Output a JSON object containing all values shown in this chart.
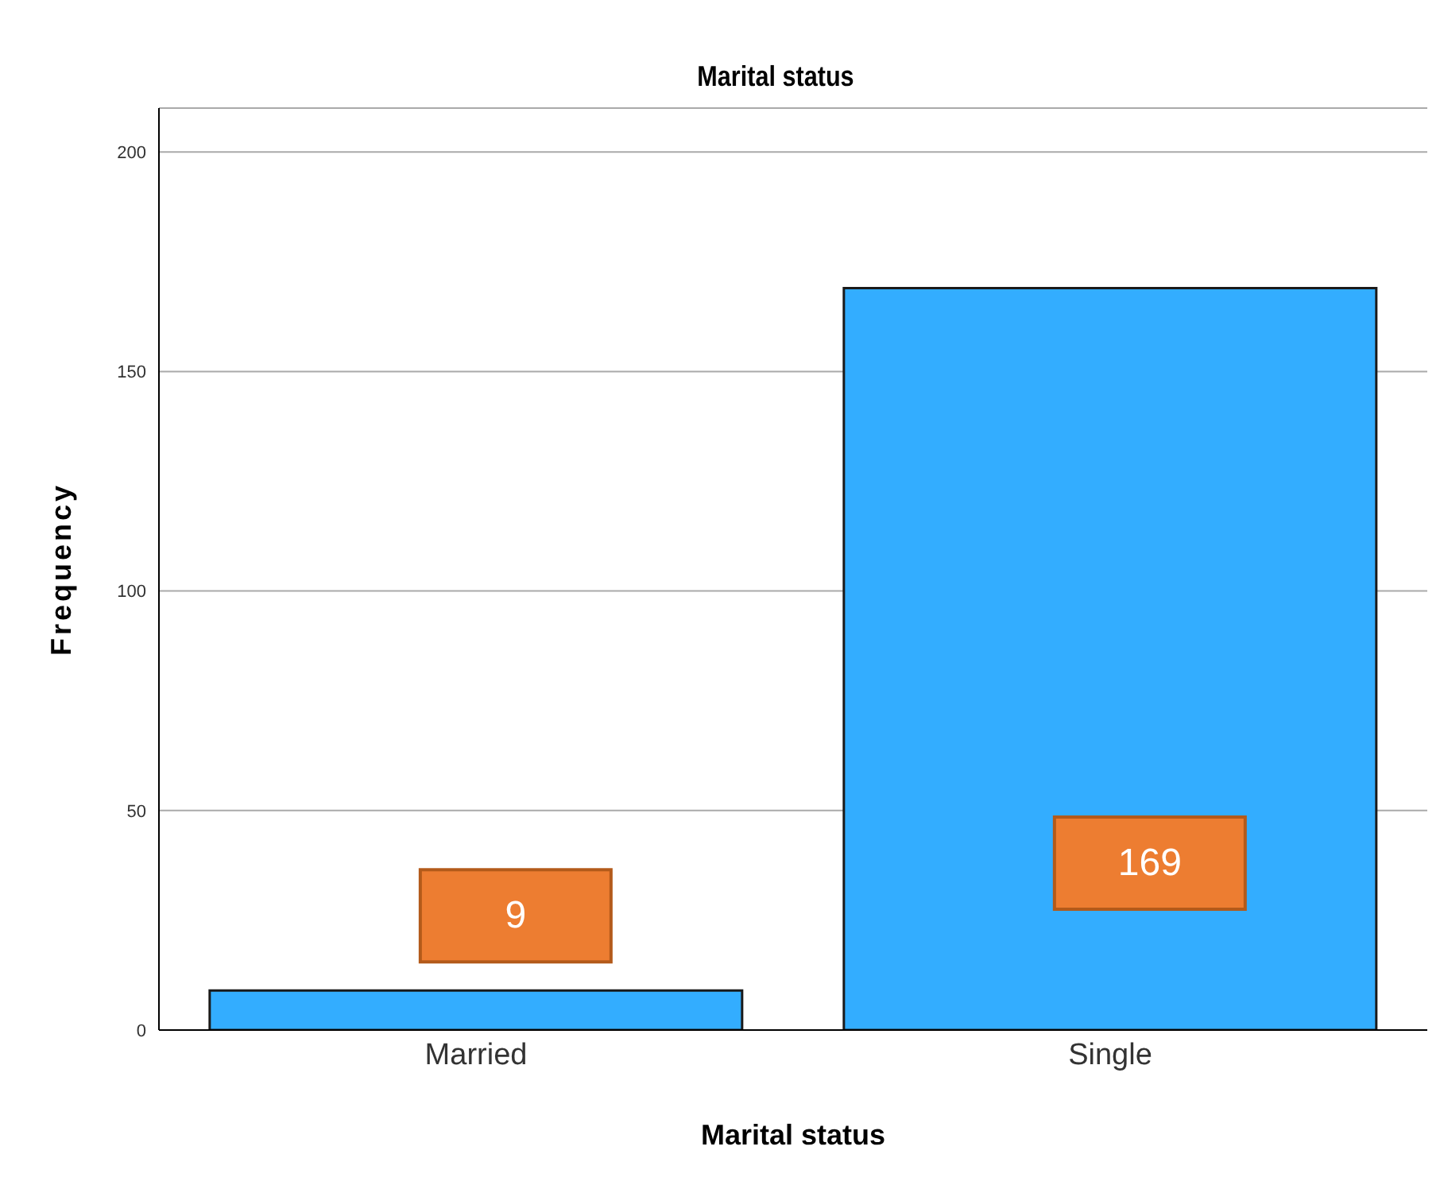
{
  "chart_data": {
    "type": "bar",
    "title": "Marital status",
    "xlabel": "Marital status",
    "ylabel": "Frequency",
    "categories": [
      "Married",
      "Single"
    ],
    "values": [
      9,
      169
    ],
    "color": "#33adff",
    "ylim": [
      0,
      210
    ],
    "yticks": [
      0,
      50,
      100,
      150,
      200
    ],
    "grid": "y",
    "data_labels": true
  }
}
